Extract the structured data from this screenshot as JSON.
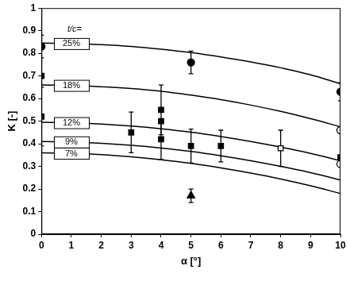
{
  "chart_data": {
    "type": "scatter",
    "xlabel": "α [°]",
    "ylabel": "K [-]",
    "xlim": [
      0,
      10
    ],
    "ylim": [
      0,
      1
    ],
    "xticks": [
      0,
      1,
      2,
      3,
      4,
      5,
      6,
      7,
      8,
      9,
      10
    ],
    "yticks": [
      0,
      0.1,
      0.2,
      0.3,
      0.4,
      0.5,
      0.6,
      0.7,
      0.8,
      0.9,
      1
    ],
    "grid": false,
    "legend": "none",
    "curve_label_title": "t/c=",
    "series": [
      {
        "name": "25%",
        "type": "line",
        "color": "#000000",
        "line_style": "solid",
        "x": [
          0,
          1,
          2,
          3,
          4,
          5,
          6,
          7,
          8,
          9,
          10
        ],
        "values": [
          0.845,
          0.843,
          0.838,
          0.83,
          0.818,
          0.803,
          0.784,
          0.762,
          0.736,
          0.705,
          0.665
        ]
      },
      {
        "name": "18%",
        "type": "line",
        "color": "#000000",
        "line_style": "solid",
        "x": [
          0,
          1,
          2,
          3,
          4,
          5,
          6,
          7,
          8,
          9,
          10
        ],
        "values": [
          0.66,
          0.658,
          0.652,
          0.644,
          0.632,
          0.615,
          0.595,
          0.571,
          0.543,
          0.511,
          0.475
        ]
      },
      {
        "name": "12%",
        "type": "line",
        "color": "#000000",
        "line_style": "solid",
        "x": [
          0,
          1,
          2,
          3,
          4,
          5,
          6,
          7,
          8,
          9,
          10
        ],
        "values": [
          0.495,
          0.493,
          0.487,
          0.478,
          0.466,
          0.451,
          0.432,
          0.41,
          0.385,
          0.357,
          0.325
        ]
      },
      {
        "name": "9%",
        "type": "line",
        "color": "#000000",
        "line_style": "solid",
        "x": [
          0,
          1,
          2,
          3,
          4,
          5,
          6,
          7,
          8,
          9,
          10
        ],
        "values": [
          0.41,
          0.408,
          0.402,
          0.393,
          0.381,
          0.366,
          0.347,
          0.325,
          0.3,
          0.272,
          0.24
        ]
      },
      {
        "name": "7%",
        "type": "line",
        "color": "#000000",
        "line_style": "solid",
        "x": [
          0,
          1,
          2,
          3,
          4,
          5,
          6,
          7,
          8,
          9,
          10
        ],
        "values": [
          0.36,
          0.358,
          0.352,
          0.342,
          0.329,
          0.313,
          0.293,
          0.27,
          0.244,
          0.214,
          0.18
        ]
      },
      {
        "type": "scatter",
        "marker": "circle",
        "color": "#000000",
        "x": [
          0,
          5,
          10
        ],
        "values": [
          0.83,
          0.76,
          0.63
        ],
        "errors": [
          0.05,
          0.05,
          0.04
        ]
      },
      {
        "type": "scatter",
        "marker": "square",
        "color": "#000000",
        "x": [
          0,
          0,
          3,
          4,
          4,
          4,
          5,
          6,
          10
        ],
        "values": [
          0.7,
          0.52,
          0.45,
          0.55,
          0.5,
          0.42,
          0.39,
          0.39,
          0.34
        ],
        "errors": [
          null,
          0.13,
          0.09,
          0.11,
          null,
          0.09,
          0.075,
          0.07,
          null
        ]
      },
      {
        "type": "scatter",
        "marker": "triangle",
        "color": "#000000",
        "x": [
          5
        ],
        "values": [
          0.17
        ],
        "errors": [
          0.03
        ]
      },
      {
        "type": "scatter",
        "marker": "open_square",
        "color": "#000000",
        "x": [
          8
        ],
        "values": [
          0.38
        ],
        "errors": [
          0.08
        ]
      },
      {
        "type": "scatter",
        "marker": "open_circle",
        "color": "#000000",
        "x": [
          10,
          10
        ],
        "values": [
          0.46,
          0.31
        ],
        "errors": [
          null,
          null
        ]
      }
    ]
  }
}
